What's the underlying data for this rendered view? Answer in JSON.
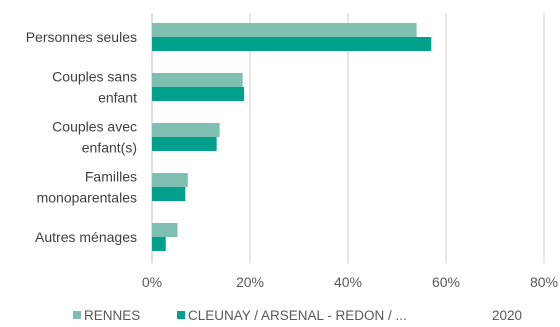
{
  "chart_data": {
    "type": "bar",
    "orientation": "horizontal",
    "categories": [
      [
        "Personnes seules"
      ],
      [
        "Couples sans",
        "enfant"
      ],
      [
        "Couples avec",
        "enfant(s)"
      ],
      [
        "Familles",
        "monoparentales"
      ],
      [
        "Autres ménages"
      ]
    ],
    "series": [
      {
        "name": "RENNES",
        "color": "#7fbfb2",
        "values": [
          54,
          18.5,
          13.8,
          7.3,
          5.2
        ]
      },
      {
        "name": "CLEUNAY / ARSENAL - REDON / ...",
        "color": "#00a08c",
        "values": [
          57,
          18.8,
          13.2,
          6.8,
          2.8
        ]
      }
    ],
    "xlim": [
      0,
      80
    ],
    "xticks": [
      0,
      20,
      40,
      60,
      80
    ],
    "tick_suffix": "%",
    "grid": true,
    "legend_position": "bottom",
    "legend_extra": "2020"
  }
}
